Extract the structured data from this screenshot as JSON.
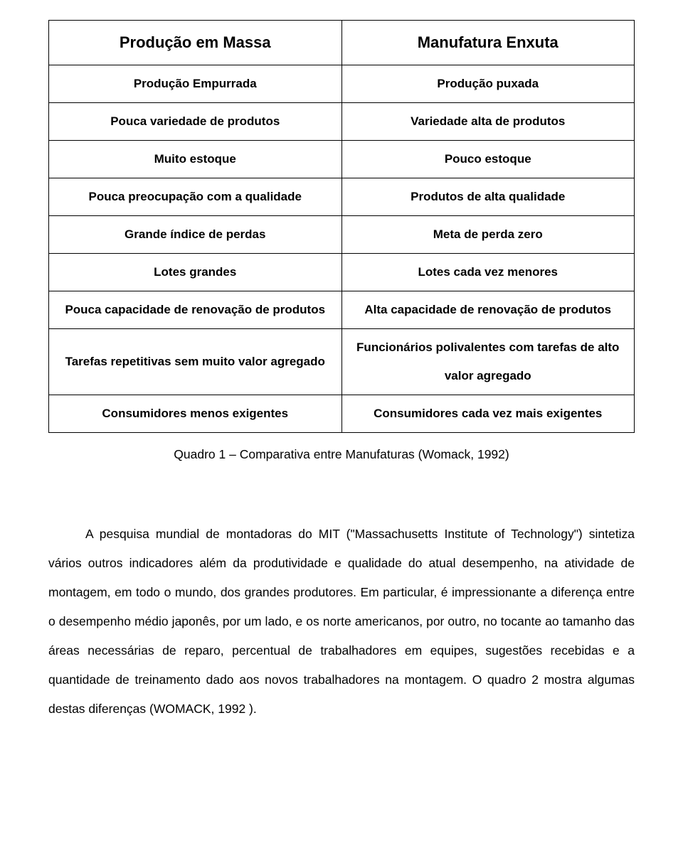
{
  "table": {
    "header": {
      "left": "Produção em Massa",
      "right": "Manufatura Enxuta"
    },
    "rows": [
      {
        "left": "Produção Empurrada",
        "right": "Produção puxada"
      },
      {
        "left": "Pouca variedade de produtos",
        "right": "Variedade alta de produtos"
      },
      {
        "left": "Muito estoque",
        "right": "Pouco estoque"
      },
      {
        "left": "Pouca preocupação com a qualidade",
        "right": "Produtos de alta qualidade"
      },
      {
        "left": "Grande índice de perdas",
        "right": "Meta de perda zero"
      },
      {
        "left": "Lotes grandes",
        "right": "Lotes cada vez menores"
      },
      {
        "left": "Pouca capacidade de renovação de produtos",
        "right": "Alta capacidade de renovação de produtos"
      },
      {
        "left": "Tarefas repetitivas sem muito valor agregado",
        "right": "Funcionários polivalentes com tarefas de alto valor agregado"
      },
      {
        "left": "Consumidores menos exigentes",
        "right": "Consumidores cada vez mais exigentes"
      }
    ]
  },
  "caption": "Quadro 1 – Comparativa entre Manufaturas (Womack, 1992)",
  "paragraph": "A pesquisa mundial de montadoras do MIT (\"Massachusetts Institute of Technology\") sintetiza vários outros indicadores  além da produtividade e qualidade do atual desempenho, na atividade de montagem, em todo o mundo, dos grandes produtores. Em particular, é impressionante a diferença entre o desempenho médio japonês, por um lado, e os norte americanos, por outro, no tocante ao tamanho das áreas necessárias de reparo, percentual de trabalhadores em equipes, sugestões recebidas e a quantidade de treinamento dado aos novos trabalhadores na montagem. O quadro 2 mostra algumas destas diferenças (WOMACK, 1992 )."
}
